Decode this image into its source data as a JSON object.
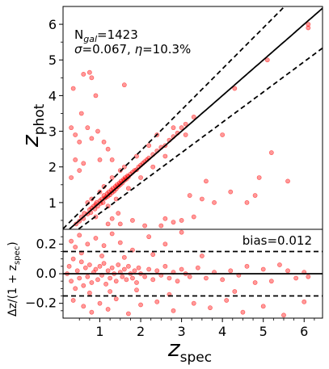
{
  "chart_data": [
    {
      "panel": "top",
      "type": "scatter",
      "xlim": [
        0.1,
        6.45
      ],
      "ylim": [
        0.25,
        6.5
      ],
      "ylabel_main": "z",
      "ylabel_sub": "phot",
      "yticks": [
        1,
        2,
        3,
        4,
        5,
        6
      ],
      "annotation": {
        "n_prefix": "N",
        "n_sub": "gal",
        "n_value": "=1423",
        "sigma_label": "σ",
        "sigma_value": "=0.067, ",
        "eta_label": "η",
        "eta_value": "=10.3%"
      },
      "lines": {
        "one_to_one": true,
        "outlier_bounds": 0.15
      },
      "marker_color": "#ff0000",
      "points": [
        [
          0.42,
          0.4
        ],
        [
          0.5,
          0.48
        ],
        [
          0.55,
          0.6
        ],
        [
          0.6,
          0.55
        ],
        [
          0.62,
          0.7
        ],
        [
          0.7,
          0.68
        ],
        [
          0.75,
          0.8
        ],
        [
          0.78,
          0.72
        ],
        [
          0.8,
          0.85
        ],
        [
          0.85,
          0.9
        ],
        [
          0.88,
          0.82
        ],
        [
          0.9,
          0.95
        ],
        [
          0.92,
          1.0
        ],
        [
          0.95,
          0.9
        ],
        [
          1.0,
          1.05
        ],
        [
          1.02,
          0.98
        ],
        [
          1.05,
          1.1
        ],
        [
          1.08,
          1.0
        ],
        [
          1.1,
          1.2
        ],
        [
          1.12,
          1.12
        ],
        [
          1.15,
          1.15
        ],
        [
          1.18,
          1.25
        ],
        [
          1.2,
          1.18
        ],
        [
          1.22,
          1.3
        ],
        [
          1.25,
          1.22
        ],
        [
          1.28,
          1.35
        ],
        [
          1.3,
          1.28
        ],
        [
          1.32,
          1.4
        ],
        [
          1.35,
          1.32
        ],
        [
          1.38,
          1.45
        ],
        [
          1.4,
          1.38
        ],
        [
          1.42,
          1.5
        ],
        [
          1.45,
          1.45
        ],
        [
          1.48,
          1.55
        ],
        [
          1.5,
          1.5
        ],
        [
          1.52,
          1.6
        ],
        [
          1.55,
          1.55
        ],
        [
          1.58,
          1.65
        ],
        [
          1.6,
          1.62
        ],
        [
          1.62,
          1.7
        ],
        [
          1.65,
          1.66
        ],
        [
          1.68,
          1.75
        ],
        [
          1.7,
          1.72
        ],
        [
          1.75,
          1.8
        ],
        [
          1.8,
          1.85
        ],
        [
          1.85,
          1.9
        ],
        [
          1.9,
          1.92
        ],
        [
          1.95,
          2.0
        ],
        [
          2.0,
          2.05
        ],
        [
          2.05,
          2.1
        ],
        [
          2.1,
          2.15
        ],
        [
          2.15,
          2.2
        ],
        [
          2.2,
          2.25
        ],
        [
          2.3,
          2.35
        ],
        [
          2.4,
          2.45
        ],
        [
          2.5,
          2.55
        ],
        [
          2.6,
          2.6
        ],
        [
          2.7,
          2.75
        ],
        [
          2.8,
          2.85
        ],
        [
          2.9,
          2.95
        ],
        [
          3.0,
          3.1
        ],
        [
          3.1,
          3.2
        ],
        [
          1.3,
          1.7
        ],
        [
          1.5,
          1.9
        ],
        [
          1.2,
          0.9
        ],
        [
          1.0,
          1.3
        ],
        [
          0.8,
          1.1
        ],
        [
          1.7,
          1.4
        ],
        [
          2.0,
          1.7
        ],
        [
          2.2,
          2.6
        ],
        [
          1.6,
          2.0
        ],
        [
          1.4,
          1.1
        ],
        [
          0.9,
          0.6
        ],
        [
          0.7,
          1.0
        ],
        [
          1.1,
          1.45
        ],
        [
          1.9,
          2.3
        ],
        [
          2.3,
          2.0
        ],
        [
          2.6,
          2.3
        ],
        [
          0.35,
          4.2
        ],
        [
          0.6,
          4.6
        ],
        [
          0.75,
          4.65
        ],
        [
          0.8,
          4.5
        ],
        [
          0.9,
          4.0
        ],
        [
          1.6,
          4.3
        ],
        [
          0.3,
          3.1
        ],
        [
          0.4,
          2.9
        ],
        [
          0.5,
          2.7
        ],
        [
          0.55,
          3.5
        ],
        [
          0.7,
          3.1
        ],
        [
          0.8,
          2.8
        ],
        [
          0.95,
          3.0
        ],
        [
          1.1,
          2.7
        ],
        [
          1.2,
          2.5
        ],
        [
          0.4,
          2.2
        ],
        [
          0.5,
          1.9
        ],
        [
          0.6,
          2.1
        ],
        [
          0.3,
          1.7
        ],
        [
          1.0,
          2.2
        ],
        [
          1.3,
          2.2
        ],
        [
          3.2,
          1.2
        ],
        [
          3.5,
          1.1
        ],
        [
          3.8,
          1.0
        ],
        [
          4.2,
          1.3
        ],
        [
          4.6,
          1.0
        ],
        [
          4.9,
          1.7
        ],
        [
          5.2,
          2.4
        ],
        [
          5.6,
          1.6
        ],
        [
          2.6,
          0.55
        ],
        [
          2.8,
          0.45
        ],
        [
          3.0,
          0.5
        ],
        [
          3.3,
          0.6
        ],
        [
          1.8,
          0.5
        ],
        [
          2.1,
          0.35
        ],
        [
          2.5,
          0.35
        ],
        [
          3.6,
          1.6
        ],
        [
          4.0,
          2.9
        ],
        [
          4.3,
          4.2
        ],
        [
          5.1,
          5.0
        ],
        [
          6.1,
          6.0
        ],
        [
          6.1,
          5.9
        ],
        [
          4.8,
          1.2
        ],
        [
          1.5,
          0.4
        ],
        [
          1.2,
          0.4
        ],
        [
          1.3,
          0.55
        ],
        [
          1.45,
          0.7
        ],
        [
          2.8,
          3.1
        ],
        [
          3.1,
          2.9
        ],
        [
          3.3,
          3.4
        ],
        [
          2.4,
          2.9
        ]
      ]
    },
    {
      "panel": "bottom",
      "type": "scatter",
      "xlim": [
        0.1,
        6.45
      ],
      "ylim": [
        -0.3,
        0.3
      ],
      "xlabel_main": "z",
      "xlabel_sub": "spec",
      "ylabel_text": "Δz/(1 + z",
      "ylabel_sub": "spec",
      "ylabel_close": ")",
      "xticks": [
        1,
        2,
        3,
        4,
        5,
        6
      ],
      "yticks": [
        "0.2",
        "0.0",
        "−0.2"
      ],
      "ytick_values": [
        0.2,
        0.0,
        -0.2
      ],
      "bias_label": "bias=0.012",
      "lines": {
        "zero": 0.0,
        "outlier_bounds": [
          0.15,
          -0.15
        ]
      },
      "marker_color": "#ff0000",
      "points": [
        [
          0.2,
          0.0
        ],
        [
          0.25,
          0.05
        ],
        [
          0.3,
          -0.05
        ],
        [
          0.35,
          0.1
        ],
        [
          0.4,
          -0.1
        ],
        [
          0.45,
          0.02
        ],
        [
          0.5,
          -0.03
        ],
        [
          0.55,
          0.08
        ],
        [
          0.6,
          -0.08
        ],
        [
          0.65,
          0.04
        ],
        [
          0.7,
          -0.02
        ],
        [
          0.75,
          0.06
        ],
        [
          0.8,
          -0.06
        ],
        [
          0.85,
          0.01
        ],
        [
          0.9,
          0.03
        ],
        [
          0.95,
          -0.04
        ],
        [
          1.0,
          0.05
        ],
        [
          1.05,
          -0.01
        ],
        [
          1.1,
          0.07
        ],
        [
          1.15,
          -0.07
        ],
        [
          1.2,
          0.02
        ],
        [
          1.25,
          -0.03
        ],
        [
          1.3,
          0.04
        ],
        [
          1.35,
          0.0
        ],
        [
          1.4,
          -0.05
        ],
        [
          1.45,
          0.06
        ],
        [
          1.5,
          0.01
        ],
        [
          1.55,
          -0.02
        ],
        [
          1.6,
          0.03
        ],
        [
          1.65,
          -0.04
        ],
        [
          1.7,
          0.05
        ],
        [
          1.75,
          0.0
        ],
        [
          1.8,
          -0.03
        ],
        [
          1.85,
          0.02
        ],
        [
          1.9,
          -0.06
        ],
        [
          1.95,
          0.04
        ],
        [
          2.0,
          0.0
        ],
        [
          2.1,
          -0.02
        ],
        [
          2.2,
          0.03
        ],
        [
          2.3,
          -0.04
        ],
        [
          2.4,
          0.02
        ],
        [
          2.5,
          -0.01
        ],
        [
          2.6,
          0.05
        ],
        [
          2.7,
          -0.03
        ],
        [
          2.8,
          0.01
        ],
        [
          2.9,
          -0.05
        ],
        [
          3.0,
          0.03
        ],
        [
          3.1,
          0.0
        ],
        [
          3.2,
          -0.02
        ],
        [
          3.4,
          0.04
        ],
        [
          3.6,
          -0.03
        ],
        [
          3.8,
          0.01
        ],
        [
          4.0,
          -0.04
        ],
        [
          4.2,
          0.02
        ],
        [
          4.4,
          -0.01
        ],
        [
          4.6,
          0.05
        ],
        [
          4.8,
          -0.06
        ],
        [
          5.0,
          0.03
        ],
        [
          5.2,
          -0.05
        ],
        [
          5.4,
          0.06
        ],
        [
          5.6,
          0.02
        ],
        [
          5.8,
          -0.03
        ],
        [
          6.0,
          0.01
        ],
        [
          6.1,
          -0.02
        ],
        [
          0.3,
          0.22
        ],
        [
          0.4,
          0.18
        ],
        [
          0.5,
          0.26
        ],
        [
          0.7,
          0.2
        ],
        [
          0.9,
          0.24
        ],
        [
          1.1,
          0.19
        ],
        [
          1.3,
          0.27
        ],
        [
          1.5,
          0.21
        ],
        [
          1.8,
          0.16
        ],
        [
          2.2,
          0.25
        ],
        [
          2.6,
          0.2
        ],
        [
          3.0,
          0.28
        ],
        [
          0.35,
          -0.18
        ],
        [
          0.6,
          -0.22
        ],
        [
          0.8,
          -0.26
        ],
        [
          1.0,
          -0.2
        ],
        [
          1.2,
          -0.24
        ],
        [
          1.4,
          -0.17
        ],
        [
          1.7,
          -0.27
        ],
        [
          2.0,
          -0.21
        ],
        [
          2.4,
          -0.19
        ],
        [
          2.8,
          -0.25
        ],
        [
          3.3,
          -0.2
        ],
        [
          3.7,
          -0.23
        ],
        [
          4.1,
          -0.18
        ],
        [
          4.5,
          -0.26
        ],
        [
          5.0,
          -0.22
        ],
        [
          5.5,
          -0.28
        ],
        [
          6.0,
          -0.19
        ],
        [
          0.55,
          0.14
        ],
        [
          0.75,
          -0.13
        ],
        [
          1.05,
          0.12
        ],
        [
          1.25,
          -0.12
        ],
        [
          1.6,
          0.11
        ],
        [
          1.9,
          -0.11
        ],
        [
          2.3,
          0.13
        ],
        [
          2.7,
          -0.14
        ],
        [
          3.5,
          0.12
        ],
        [
          4.3,
          -0.12
        ]
      ]
    }
  ]
}
